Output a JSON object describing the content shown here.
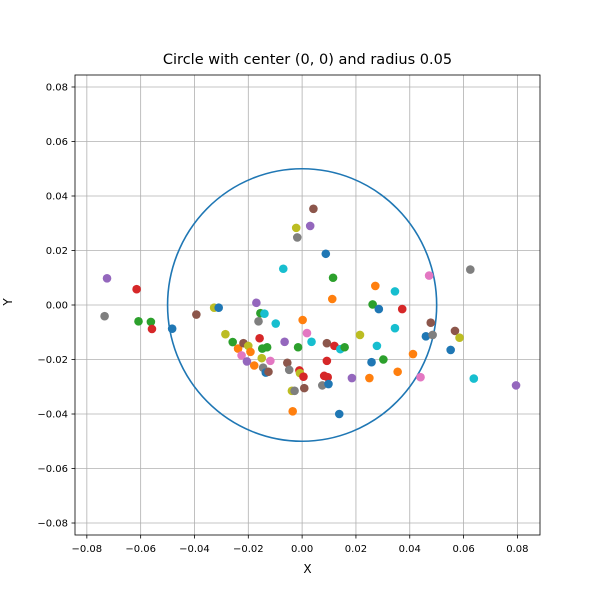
{
  "chart_data": {
    "type": "scatter",
    "title": "Circle with center (0, 0) and radius 0.05",
    "xlabel": "X",
    "ylabel": "Y",
    "xlim": [
      -0.0844,
      0.0884
    ],
    "ylim": [
      -0.0844,
      0.0844
    ],
    "xticks": [
      -0.08,
      -0.06,
      -0.04,
      -0.02,
      0.0,
      0.02,
      0.04,
      0.06,
      0.08
    ],
    "yticks": [
      -0.08,
      -0.06,
      -0.04,
      -0.02,
      0.0,
      0.02,
      0.04,
      0.06,
      0.08
    ],
    "xtick_labels": [
      "−0.08",
      "−0.06",
      "−0.04",
      "−0.02",
      "0.00",
      "0.02",
      "0.04",
      "0.06",
      "0.08"
    ],
    "ytick_labels": [
      "−0.08",
      "−0.06",
      "−0.04",
      "−0.02",
      "0.00",
      "0.02",
      "0.04",
      "0.06",
      "0.08"
    ],
    "grid": true,
    "circle": {
      "center": [
        0,
        0
      ],
      "radius": 0.05,
      "color": "#1f77b4"
    },
    "palette": [
      "#1f77b4",
      "#ff7f0e",
      "#2ca02c",
      "#d62728",
      "#9467bd",
      "#8c564b",
      "#e377c2",
      "#7f7f7f",
      "#bcbd22",
      "#17becf"
    ],
    "points": [
      {
        "x": -0.0725,
        "y": 0.0098,
        "color": "#9467bd"
      },
      {
        "x": -0.0734,
        "y": -0.0041,
        "color": "#7f7f7f"
      },
      {
        "x": -0.0615,
        "y": 0.0058,
        "color": "#d62728"
      },
      {
        "x": -0.0608,
        "y": -0.006,
        "color": "#2ca02c"
      },
      {
        "x": -0.0562,
        "y": -0.0062,
        "color": "#2ca02c"
      },
      {
        "x": -0.0558,
        "y": -0.0088,
        "color": "#d62728"
      },
      {
        "x": -0.0483,
        "y": -0.0087,
        "color": "#1f77b4"
      },
      {
        "x": -0.0393,
        "y": -0.0035,
        "color": "#8c564b"
      },
      {
        "x": -0.0327,
        "y": -0.001,
        "color": "#bcbd22"
      },
      {
        "x": -0.031,
        "y": -0.001,
        "color": "#1f77b4"
      },
      {
        "x": -0.0285,
        "y": -0.0107,
        "color": "#bcbd22"
      },
      {
        "x": -0.0258,
        "y": -0.0136,
        "color": "#2ca02c"
      },
      {
        "x": -0.0238,
        "y": -0.016,
        "color": "#ff7f0e"
      },
      {
        "x": -0.0225,
        "y": -0.0185,
        "color": "#e377c2"
      },
      {
        "x": -0.0218,
        "y": -0.014,
        "color": "#8c564b"
      },
      {
        "x": -0.0205,
        "y": -0.0207,
        "color": "#9467bd"
      },
      {
        "x": -0.02,
        "y": -0.015,
        "color": "#bcbd22"
      },
      {
        "x": -0.0192,
        "y": -0.0172,
        "color": "#ff7f0e"
      },
      {
        "x": -0.0178,
        "y": -0.0222,
        "color": "#ff7f0e"
      },
      {
        "x": -0.017,
        "y": 0.0008,
        "color": "#9467bd"
      },
      {
        "x": -0.0162,
        "y": -0.006,
        "color": "#7f7f7f"
      },
      {
        "x": -0.0158,
        "y": -0.0122,
        "color": "#d62728"
      },
      {
        "x": -0.0155,
        "y": -0.003,
        "color": "#2ca02c"
      },
      {
        "x": -0.015,
        "y": -0.0195,
        "color": "#bcbd22"
      },
      {
        "x": -0.0148,
        "y": -0.016,
        "color": "#2ca02c"
      },
      {
        "x": -0.0145,
        "y": -0.023,
        "color": "#7f7f7f"
      },
      {
        "x": -0.014,
        "y": -0.0032,
        "color": "#17becf"
      },
      {
        "x": -0.0135,
        "y": -0.0248,
        "color": "#1f77b4"
      },
      {
        "x": -0.013,
        "y": -0.0155,
        "color": "#2ca02c"
      },
      {
        "x": -0.0125,
        "y": -0.0245,
        "color": "#8c564b"
      },
      {
        "x": -0.0118,
        "y": -0.0205,
        "color": "#e377c2"
      },
      {
        "x": -0.0098,
        "y": -0.0068,
        "color": "#17becf"
      },
      {
        "x": -0.007,
        "y": 0.0133,
        "color": "#17becf"
      },
      {
        "x": -0.0065,
        "y": -0.0135,
        "color": "#9467bd"
      },
      {
        "x": -0.0055,
        "y": -0.0212,
        "color": "#8c564b"
      },
      {
        "x": -0.0048,
        "y": -0.0238,
        "color": "#7f7f7f"
      },
      {
        "x": -0.0038,
        "y": -0.0315,
        "color": "#bcbd22"
      },
      {
        "x": -0.0035,
        "y": -0.039,
        "color": "#ff7f0e"
      },
      {
        "x": -0.0028,
        "y": -0.0315,
        "color": "#7f7f7f"
      },
      {
        "x": -0.0022,
        "y": 0.0283,
        "color": "#bcbd22"
      },
      {
        "x": -0.0018,
        "y": 0.0248,
        "color": "#7f7f7f"
      },
      {
        "x": -0.0015,
        "y": -0.0155,
        "color": "#2ca02c"
      },
      {
        "x": -0.001,
        "y": -0.024,
        "color": "#d62728"
      },
      {
        "x": -0.0008,
        "y": -0.025,
        "color": "#bcbd22"
      },
      {
        "x": 0.0002,
        "y": -0.0055,
        "color": "#ff7f0e"
      },
      {
        "x": 0.0005,
        "y": -0.0263,
        "color": "#d62728"
      },
      {
        "x": 0.0008,
        "y": -0.0305,
        "color": "#8c564b"
      },
      {
        "x": 0.0018,
        "y": -0.0103,
        "color": "#e377c2"
      },
      {
        "x": 0.003,
        "y": 0.029,
        "color": "#9467bd"
      },
      {
        "x": 0.0035,
        "y": -0.0135,
        "color": "#17becf"
      },
      {
        "x": 0.0042,
        "y": 0.0353,
        "color": "#8c564b"
      },
      {
        "x": 0.0075,
        "y": -0.0295,
        "color": "#7f7f7f"
      },
      {
        "x": 0.0082,
        "y": -0.026,
        "color": "#d62728"
      },
      {
        "x": 0.0088,
        "y": 0.0188,
        "color": "#1f77b4"
      },
      {
        "x": 0.0092,
        "y": -0.014,
        "color": "#8c564b"
      },
      {
        "x": 0.0092,
        "y": -0.0205,
        "color": "#d62728"
      },
      {
        "x": 0.0095,
        "y": -0.0265,
        "color": "#d62728"
      },
      {
        "x": 0.0098,
        "y": -0.029,
        "color": "#1f77b4"
      },
      {
        "x": 0.0112,
        "y": 0.0022,
        "color": "#ff7f0e"
      },
      {
        "x": 0.0115,
        "y": 0.01,
        "color": "#2ca02c"
      },
      {
        "x": 0.012,
        "y": -0.015,
        "color": "#d62728"
      },
      {
        "x": 0.0138,
        "y": -0.04,
        "color": "#1f77b4"
      },
      {
        "x": 0.0142,
        "y": -0.0162,
        "color": "#17becf"
      },
      {
        "x": 0.0158,
        "y": -0.0155,
        "color": "#2ca02c"
      },
      {
        "x": 0.0185,
        "y": -0.0268,
        "color": "#9467bd"
      },
      {
        "x": 0.0215,
        "y": -0.011,
        "color": "#bcbd22"
      },
      {
        "x": 0.025,
        "y": -0.0268,
        "color": "#ff7f0e"
      },
      {
        "x": 0.0258,
        "y": -0.021,
        "color": "#1f77b4"
      },
      {
        "x": 0.0262,
        "y": 0.0002,
        "color": "#2ca02c"
      },
      {
        "x": 0.0272,
        "y": 0.007,
        "color": "#ff7f0e"
      },
      {
        "x": 0.0278,
        "y": -0.015,
        "color": "#17becf"
      },
      {
        "x": 0.0285,
        "y": -0.0015,
        "color": "#1f77b4"
      },
      {
        "x": 0.0302,
        "y": -0.02,
        "color": "#2ca02c"
      },
      {
        "x": 0.0345,
        "y": 0.005,
        "color": "#17becf"
      },
      {
        "x": 0.0345,
        "y": -0.0085,
        "color": "#17becf"
      },
      {
        "x": 0.0355,
        "y": -0.0245,
        "color": "#ff7f0e"
      },
      {
        "x": 0.0372,
        "y": -0.0015,
        "color": "#d62728"
      },
      {
        "x": 0.0412,
        "y": -0.018,
        "color": "#ff7f0e"
      },
      {
        "x": 0.044,
        "y": -0.0265,
        "color": "#e377c2"
      },
      {
        "x": 0.046,
        "y": -0.0115,
        "color": "#1f77b4"
      },
      {
        "x": 0.0472,
        "y": 0.0108,
        "color": "#e377c2"
      },
      {
        "x": 0.0478,
        "y": -0.0065,
        "color": "#8c564b"
      },
      {
        "x": 0.0485,
        "y": -0.011,
        "color": "#7f7f7f"
      },
      {
        "x": 0.0552,
        "y": -0.0165,
        "color": "#1f77b4"
      },
      {
        "x": 0.0568,
        "y": -0.0095,
        "color": "#8c564b"
      },
      {
        "x": 0.0585,
        "y": -0.012,
        "color": "#bcbd22"
      },
      {
        "x": 0.0625,
        "y": 0.013,
        "color": "#7f7f7f"
      },
      {
        "x": 0.0638,
        "y": -0.027,
        "color": "#17becf"
      },
      {
        "x": 0.0795,
        "y": -0.0295,
        "color": "#9467bd"
      }
    ]
  }
}
